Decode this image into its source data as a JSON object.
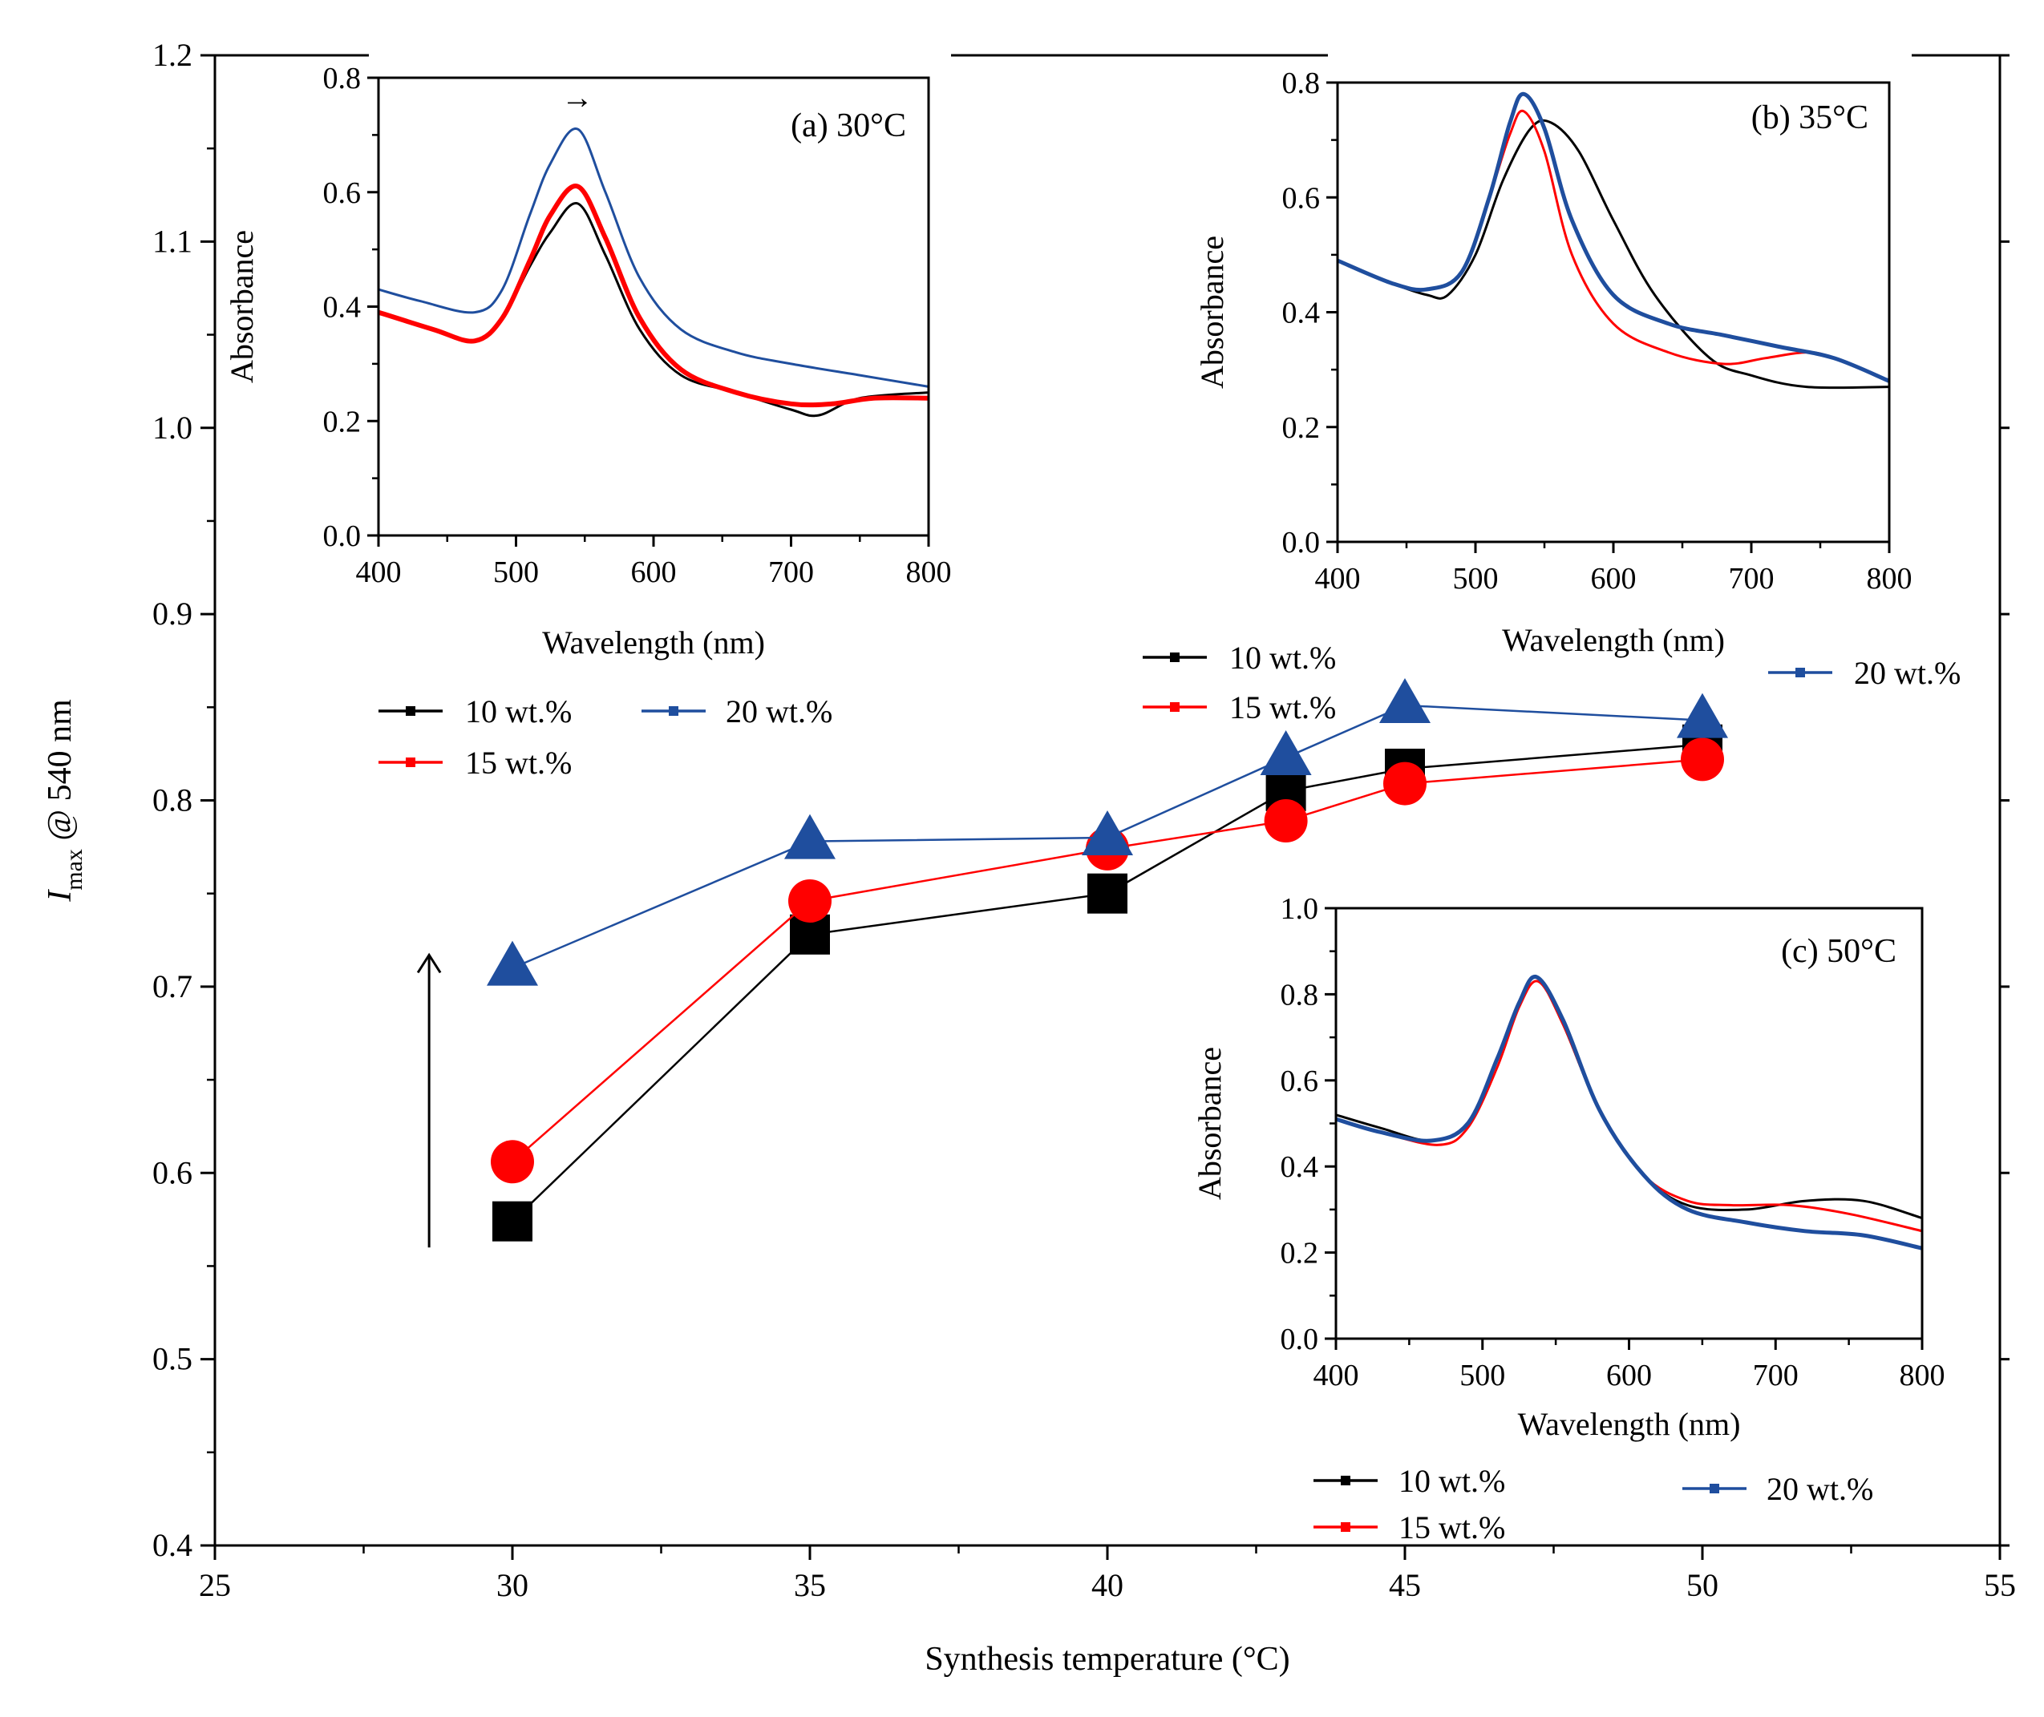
{
  "chart_data": [
    {
      "id": "main",
      "type": "line",
      "title": "",
      "xlabel": "Synthesis temperature (°C)",
      "ylabel": "I",
      "ylabel_sub": "max",
      "ylabel_tail": " @ 540 nm",
      "xlim": [
        25,
        55
      ],
      "ylim": [
        0.4,
        1.2
      ],
      "xticks": [
        25,
        30,
        35,
        40,
        45,
        50,
        55
      ],
      "yticks": [
        "0.4",
        "0.5",
        "0.6",
        "0.7",
        "0.8",
        "0.9",
        "1.0",
        "1.1",
        "1.2"
      ],
      "series": [
        {
          "name": "10 wt.%",
          "color": "#000000",
          "marker": "square",
          "x": [
            30,
            35,
            40,
            43,
            45,
            50
          ],
          "y": [
            0.574,
            0.728,
            0.75,
            0.805,
            0.817,
            0.83
          ]
        },
        {
          "name": "15 wt.%",
          "color": "#ff0000",
          "marker": "circle",
          "x": [
            30,
            35,
            40,
            43,
            45,
            50
          ],
          "y": [
            0.606,
            0.746,
            0.774,
            0.789,
            0.809,
            0.822
          ]
        },
        {
          "name": "20 wt.%",
          "color": "#1f4e9e",
          "marker": "triangle",
          "x": [
            30,
            35,
            40,
            43,
            45,
            50
          ],
          "y": [
            0.71,
            0.778,
            0.78,
            0.823,
            0.851,
            0.843
          ]
        }
      ]
    },
    {
      "id": "inset-a",
      "type": "line",
      "title": "(a) 30°C",
      "xlabel": "Wavelength (nm)",
      "ylabel": "Absorbance",
      "xlim": [
        400,
        800
      ],
      "ylim": [
        0.0,
        0.8
      ],
      "xticks": [
        400,
        500,
        600,
        700,
        800
      ],
      "yticks": [
        "0.0",
        "0.2",
        "0.4",
        "0.6",
        "0.8"
      ],
      "series": [
        {
          "name": "10 wt.%",
          "color": "#000000",
          "width": 3,
          "x": [
            400,
            440,
            470,
            490,
            510,
            525,
            545,
            565,
            590,
            620,
            660,
            700,
            720,
            750,
            800
          ],
          "y": [
            0.39,
            0.36,
            0.34,
            0.38,
            0.47,
            0.53,
            0.58,
            0.49,
            0.36,
            0.28,
            0.25,
            0.22,
            0.21,
            0.24,
            0.25
          ]
        },
        {
          "name": "15 wt.%",
          "color": "#ff0000",
          "width": 6,
          "x": [
            400,
            440,
            470,
            490,
            510,
            525,
            545,
            565,
            590,
            620,
            660,
            700,
            730,
            760,
            800
          ],
          "y": [
            0.39,
            0.36,
            0.34,
            0.38,
            0.48,
            0.56,
            0.61,
            0.52,
            0.38,
            0.29,
            0.25,
            0.23,
            0.23,
            0.24,
            0.24
          ]
        },
        {
          "name": "20 wt.%",
          "color": "#1f4e9e",
          "width": 3,
          "x": [
            400,
            430,
            470,
            490,
            510,
            525,
            545,
            565,
            590,
            620,
            660,
            700,
            750,
            800
          ],
          "y": [
            0.43,
            0.41,
            0.39,
            0.43,
            0.56,
            0.65,
            0.71,
            0.6,
            0.45,
            0.36,
            0.32,
            0.3,
            0.28,
            0.26
          ]
        }
      ],
      "legend": [
        {
          "name": "10 wt.%",
          "color": "#000000"
        },
        {
          "name": "20 wt.%",
          "color": "#1f4e9e"
        },
        {
          "name": "15 wt.%",
          "color": "#ff0000"
        }
      ]
    },
    {
      "id": "inset-b",
      "type": "line",
      "title": "(b) 35°C",
      "xlabel": "Wavelength (nm)",
      "ylabel": "Absorbance",
      "xlim": [
        400,
        800
      ],
      "ylim": [
        0.0,
        0.8
      ],
      "xticks": [
        400,
        500,
        600,
        700,
        800
      ],
      "yticks": [
        "0.0",
        "0.2",
        "0.4",
        "0.6",
        "0.8"
      ],
      "series": [
        {
          "name": "10 wt.%",
          "color": "#000000",
          "width": 3,
          "x": [
            400,
            440,
            465,
            480,
            500,
            520,
            540,
            555,
            575,
            600,
            630,
            670,
            700,
            740,
            800
          ],
          "y": [
            0.49,
            0.45,
            0.43,
            0.43,
            0.5,
            0.63,
            0.72,
            0.73,
            0.68,
            0.56,
            0.43,
            0.32,
            0.29,
            0.27,
            0.27
          ]
        },
        {
          "name": "15 wt.%",
          "color": "#ff0000",
          "width": 3,
          "x": [
            400,
            440,
            465,
            490,
            510,
            525,
            535,
            550,
            570,
            600,
            640,
            680,
            710,
            740,
            760,
            800
          ],
          "y": [
            0.49,
            0.45,
            0.44,
            0.47,
            0.6,
            0.71,
            0.75,
            0.68,
            0.5,
            0.38,
            0.33,
            0.31,
            0.32,
            0.33,
            0.32,
            0.28
          ]
        },
        {
          "name": "20 wt.%",
          "color": "#1f4e9e",
          "width": 5,
          "x": [
            400,
            440,
            465,
            490,
            510,
            525,
            535,
            550,
            570,
            600,
            640,
            680,
            720,
            760,
            800
          ],
          "y": [
            0.49,
            0.45,
            0.44,
            0.47,
            0.6,
            0.73,
            0.78,
            0.72,
            0.56,
            0.43,
            0.38,
            0.36,
            0.34,
            0.32,
            0.28
          ]
        }
      ],
      "legend": [
        {
          "name": "10 wt.%",
          "color": "#000000"
        },
        {
          "name": "15 wt.%",
          "color": "#ff0000"
        },
        {
          "name": "20 wt.%",
          "color": "#1f4e9e"
        }
      ]
    },
    {
      "id": "inset-c",
      "type": "line",
      "title": "(c) 50°C",
      "xlabel": "Wavelength (nm)",
      "ylabel": "Absorbance",
      "xlim": [
        400,
        800
      ],
      "ylim": [
        0.0,
        1.0
      ],
      "xticks": [
        400,
        500,
        600,
        700,
        800
      ],
      "yticks": [
        "0.0",
        "0.2",
        "0.4",
        "0.6",
        "0.8",
        "1.0"
      ],
      "series": [
        {
          "name": "10 wt.%",
          "color": "#000000",
          "width": 3,
          "x": [
            400,
            430,
            465,
            490,
            510,
            525,
            537,
            555,
            580,
            610,
            640,
            680,
            720,
            760,
            800
          ],
          "y": [
            0.52,
            0.49,
            0.46,
            0.5,
            0.65,
            0.78,
            0.84,
            0.73,
            0.53,
            0.38,
            0.31,
            0.3,
            0.32,
            0.32,
            0.28
          ]
        },
        {
          "name": "15 wt.%",
          "color": "#ff0000",
          "width": 3,
          "x": [
            400,
            430,
            470,
            490,
            510,
            525,
            538,
            555,
            580,
            610,
            640,
            670,
            710,
            750,
            800
          ],
          "y": [
            0.51,
            0.48,
            0.45,
            0.49,
            0.63,
            0.77,
            0.83,
            0.73,
            0.53,
            0.38,
            0.32,
            0.31,
            0.31,
            0.29,
            0.25
          ]
        },
        {
          "name": "20 wt.%",
          "color": "#1f4e9e",
          "width": 5,
          "x": [
            400,
            430,
            465,
            490,
            510,
            525,
            537,
            555,
            580,
            610,
            640,
            680,
            720,
            760,
            800
          ],
          "y": [
            0.51,
            0.48,
            0.46,
            0.5,
            0.65,
            0.78,
            0.84,
            0.74,
            0.53,
            0.38,
            0.3,
            0.27,
            0.25,
            0.24,
            0.21
          ]
        }
      ],
      "legend": [
        {
          "name": "10 wt.%",
          "color": "#000000"
        },
        {
          "name": "20 wt.%",
          "color": "#1f4e9e"
        },
        {
          "name": "15 wt.%",
          "color": "#ff0000"
        }
      ]
    }
  ],
  "annotations": {
    "inset_a_arrow": "→"
  }
}
